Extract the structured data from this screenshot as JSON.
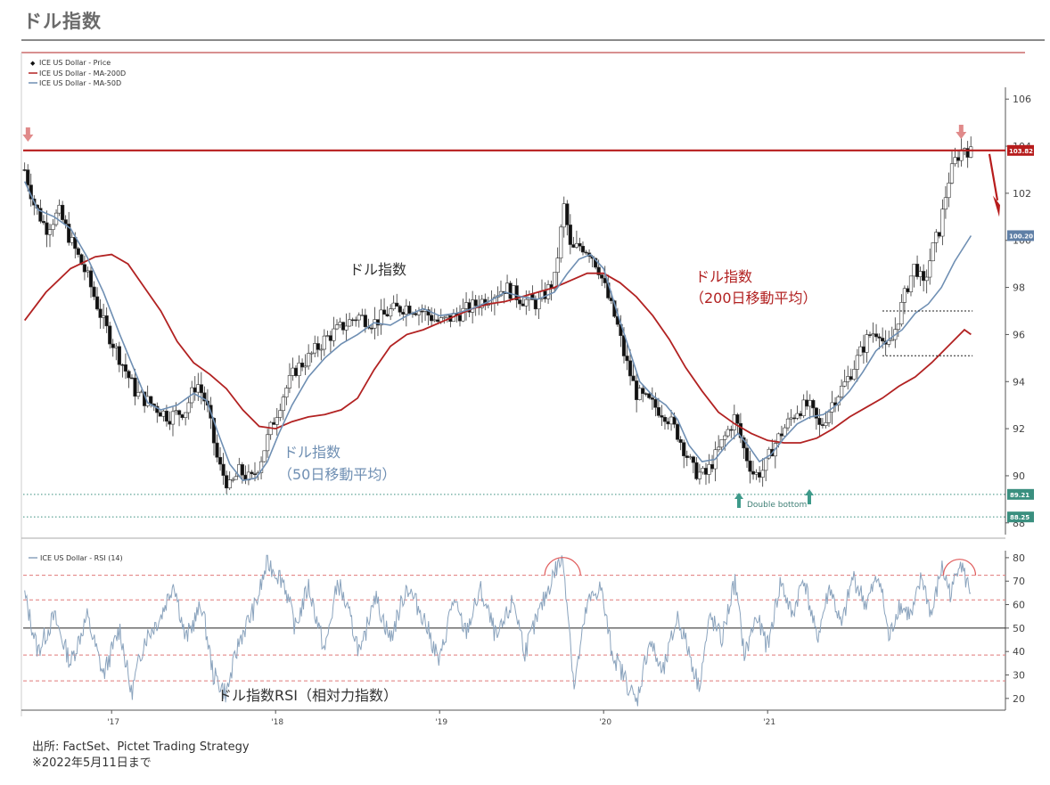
{
  "page": {
    "title": "ドル指数",
    "source_lines": [
      "出所: FactSet、Pictet Trading Strategy",
      "※2022年5月11日まで"
    ]
  },
  "colors": {
    "price": "#111111",
    "ma200": "#b22222",
    "ma50": "#6f8fb3",
    "rsi": "#8aa3bd",
    "resistance": "#b71c1c",
    "support": "#3a8f7f",
    "down_arrow": "#e08a8a",
    "up_arrow": "#3e9a8a",
    "rsi_band": "#e07a7a"
  },
  "chart_data": [
    {
      "type": "candlestick",
      "legend": {
        "price": "ICE US Dollar - Price",
        "ma200": "ICE US Dollar - MA-200D",
        "ma50": "ICE US Dollar - MA-50D"
      },
      "x_ticks": [
        "'17",
        "'18",
        "'19",
        "'20",
        "'21"
      ],
      "x_tick_years": [
        2017,
        2018,
        2019,
        2020,
        2021
      ],
      "x_range": [
        2016.45,
        2022.45
      ],
      "ylim": [
        87.5,
        106.5
      ],
      "y_ticks": [
        88,
        90,
        92,
        94,
        96,
        98,
        100,
        102,
        104,
        106
      ],
      "price_path": [
        [
          2016.47,
          103.0
        ],
        [
          2016.53,
          101.5
        ],
        [
          2016.6,
          100.5
        ],
        [
          2016.68,
          101.2
        ],
        [
          2016.75,
          100.0
        ],
        [
          2016.85,
          98.5
        ],
        [
          2016.95,
          96.5
        ],
        [
          2017.05,
          95.0
        ],
        [
          2017.15,
          93.5
        ],
        [
          2017.25,
          93.0
        ],
        [
          2017.35,
          92.5
        ],
        [
          2017.45,
          92.8
        ],
        [
          2017.52,
          94.0
        ],
        [
          2017.58,
          93.0
        ],
        [
          2017.65,
          90.5
        ],
        [
          2017.72,
          89.5
        ],
        [
          2017.78,
          90.2
        ],
        [
          2017.85,
          89.8
        ],
        [
          2017.9,
          90.5
        ],
        [
          2017.97,
          92.0
        ],
        [
          2018.05,
          93.5
        ],
        [
          2018.12,
          94.5
        ],
        [
          2018.2,
          95.0
        ],
        [
          2018.3,
          95.8
        ],
        [
          2018.4,
          96.3
        ],
        [
          2018.5,
          96.8
        ],
        [
          2018.6,
          96.5
        ],
        [
          2018.7,
          97.0
        ],
        [
          2018.8,
          97.2
        ],
        [
          2018.9,
          97.0
        ],
        [
          2019.0,
          96.5
        ],
        [
          2019.1,
          96.8
        ],
        [
          2019.2,
          97.2
        ],
        [
          2019.3,
          97.6
        ],
        [
          2019.4,
          98.0
        ],
        [
          2019.5,
          97.5
        ],
        [
          2019.6,
          97.3
        ],
        [
          2019.7,
          98.3
        ],
        [
          2019.76,
          101.5
        ],
        [
          2019.8,
          99.5
        ],
        [
          2019.86,
          99.8
        ],
        [
          2019.92,
          99.5
        ],
        [
          2019.97,
          98.8
        ],
        [
          2020.03,
          97.5
        ],
        [
          2020.08,
          96.5
        ],
        [
          2020.13,
          95.0
        ],
        [
          2020.2,
          93.5
        ],
        [
          2020.3,
          93.0
        ],
        [
          2020.38,
          92.6
        ],
        [
          2020.45,
          91.8
        ],
        [
          2020.5,
          91.0
        ],
        [
          2020.55,
          90.2
        ],
        [
          2020.62,
          90.0
        ],
        [
          2020.68,
          90.8
        ],
        [
          2020.75,
          91.8
        ],
        [
          2020.8,
          92.5
        ],
        [
          2020.86,
          91.0
        ],
        [
          2020.92,
          90.0
        ],
        [
          2020.98,
          90.3
        ],
        [
          2021.03,
          91.2
        ],
        [
          2021.1,
          92.0
        ],
        [
          2021.18,
          92.8
        ],
        [
          2021.25,
          93.0
        ],
        [
          2021.32,
          92.0
        ],
        [
          2021.4,
          93.2
        ],
        [
          2021.48,
          94.0
        ],
        [
          2021.55,
          95.0
        ],
        [
          2021.62,
          96.0
        ],
        [
          2021.68,
          96.2
        ],
        [
          2021.72,
          95.3
        ],
        [
          2021.76,
          95.8
        ],
        [
          2021.8,
          96.8
        ],
        [
          2021.85,
          98.0
        ],
        [
          2021.9,
          99.0
        ],
        [
          2021.95,
          98.0
        ],
        [
          2022.0,
          99.5
        ],
        [
          2022.05,
          100.5
        ],
        [
          2022.1,
          102.5
        ],
        [
          2022.15,
          103.5
        ],
        [
          2022.2,
          104.0
        ],
        [
          2022.24,
          103.7
        ]
      ],
      "ma200_path": [
        [
          2016.47,
          96.6
        ],
        [
          2016.6,
          97.8
        ],
        [
          2016.75,
          98.8
        ],
        [
          2016.9,
          99.3
        ],
        [
          2017.0,
          99.4
        ],
        [
          2017.1,
          99.0
        ],
        [
          2017.2,
          98.0
        ],
        [
          2017.3,
          97.0
        ],
        [
          2017.4,
          95.7
        ],
        [
          2017.5,
          94.8
        ],
        [
          2017.6,
          94.3
        ],
        [
          2017.7,
          93.7
        ],
        [
          2017.8,
          92.8
        ],
        [
          2017.9,
          92.1
        ],
        [
          2018.0,
          92.0
        ],
        [
          2018.1,
          92.3
        ],
        [
          2018.2,
          92.5
        ],
        [
          2018.3,
          92.6
        ],
        [
          2018.4,
          92.8
        ],
        [
          2018.5,
          93.3
        ],
        [
          2018.6,
          94.5
        ],
        [
          2018.7,
          95.5
        ],
        [
          2018.8,
          96.0
        ],
        [
          2018.9,
          96.2
        ],
        [
          2019.0,
          96.5
        ],
        [
          2019.1,
          96.8
        ],
        [
          2019.2,
          97.1
        ],
        [
          2019.3,
          97.3
        ],
        [
          2019.4,
          97.4
        ],
        [
          2019.5,
          97.6
        ],
        [
          2019.6,
          97.8
        ],
        [
          2019.7,
          98.0
        ],
        [
          2019.8,
          98.3
        ],
        [
          2019.9,
          98.6
        ],
        [
          2020.0,
          98.6
        ],
        [
          2020.1,
          98.2
        ],
        [
          2020.2,
          97.6
        ],
        [
          2020.3,
          96.8
        ],
        [
          2020.4,
          95.8
        ],
        [
          2020.5,
          94.6
        ],
        [
          2020.6,
          93.6
        ],
        [
          2020.7,
          92.7
        ],
        [
          2020.8,
          92.2
        ],
        [
          2020.9,
          91.8
        ],
        [
          2021.0,
          91.5
        ],
        [
          2021.1,
          91.4
        ],
        [
          2021.2,
          91.4
        ],
        [
          2021.3,
          91.6
        ],
        [
          2021.4,
          92.0
        ],
        [
          2021.5,
          92.5
        ],
        [
          2021.6,
          92.9
        ],
        [
          2021.7,
          93.3
        ],
        [
          2021.8,
          93.8
        ],
        [
          2021.9,
          94.2
        ],
        [
          2022.0,
          94.8
        ],
        [
          2022.1,
          95.5
        ],
        [
          2022.2,
          96.2
        ],
        [
          2022.24,
          96.0
        ]
      ],
      "ma50_path": [
        [
          2016.47,
          102.5
        ],
        [
          2016.55,
          101.3
        ],
        [
          2016.65,
          101.0
        ],
        [
          2016.75,
          100.5
        ],
        [
          2016.85,
          99.3
        ],
        [
          2016.95,
          97.8
        ],
        [
          2017.05,
          96.0
        ],
        [
          2017.15,
          94.3
        ],
        [
          2017.22,
          93.1
        ],
        [
          2017.3,
          92.8
        ],
        [
          2017.4,
          93.0
        ],
        [
          2017.5,
          93.5
        ],
        [
          2017.58,
          93.2
        ],
        [
          2017.65,
          91.8
        ],
        [
          2017.72,
          90.5
        ],
        [
          2017.8,
          89.8
        ],
        [
          2017.88,
          89.9
        ],
        [
          2017.95,
          90.6
        ],
        [
          2018.02,
          91.8
        ],
        [
          2018.1,
          93.0
        ],
        [
          2018.2,
          94.2
        ],
        [
          2018.3,
          95.0
        ],
        [
          2018.4,
          95.6
        ],
        [
          2018.5,
          96.0
        ],
        [
          2018.6,
          96.5
        ],
        [
          2018.7,
          96.4
        ],
        [
          2018.8,
          96.8
        ],
        [
          2018.9,
          97.1
        ],
        [
          2019.0,
          96.8
        ],
        [
          2019.1,
          96.9
        ],
        [
          2019.2,
          97.1
        ],
        [
          2019.3,
          97.4
        ],
        [
          2019.4,
          97.8
        ],
        [
          2019.5,
          97.6
        ],
        [
          2019.6,
          97.5
        ],
        [
          2019.7,
          97.8
        ],
        [
          2019.78,
          98.6
        ],
        [
          2019.85,
          99.2
        ],
        [
          2019.92,
          99.4
        ],
        [
          2020.0,
          98.8
        ],
        [
          2020.08,
          97.0
        ],
        [
          2020.15,
          95.5
        ],
        [
          2020.22,
          94.0
        ],
        [
          2020.3,
          93.4
        ],
        [
          2020.38,
          93.0
        ],
        [
          2020.45,
          92.4
        ],
        [
          2020.52,
          91.3
        ],
        [
          2020.6,
          90.6
        ],
        [
          2020.68,
          90.7
        ],
        [
          2020.76,
          91.4
        ],
        [
          2020.82,
          91.8
        ],
        [
          2020.88,
          91.3
        ],
        [
          2020.95,
          90.6
        ],
        [
          2021.02,
          90.9
        ],
        [
          2021.1,
          91.6
        ],
        [
          2021.18,
          92.2
        ],
        [
          2021.26,
          92.5
        ],
        [
          2021.34,
          92.6
        ],
        [
          2021.42,
          93.0
        ],
        [
          2021.5,
          93.6
        ],
        [
          2021.58,
          94.4
        ],
        [
          2021.66,
          95.3
        ],
        [
          2021.74,
          95.8
        ],
        [
          2021.82,
          96.2
        ],
        [
          2021.9,
          96.9
        ],
        [
          2021.98,
          97.3
        ],
        [
          2022.06,
          98.0
        ],
        [
          2022.14,
          99.1
        ],
        [
          2022.24,
          100.2
        ]
      ],
      "level_tags": {
        "resistance": "103.82",
        "ma50_last": "100.20",
        "support_1": "89.21",
        "support_2": "88.25"
      },
      "levels": {
        "resistance": 103.82,
        "support_1": 89.21,
        "support_2": 88.25,
        "range_top": 97.0,
        "range_bottom": 95.1
      },
      "annotations": {
        "price_label": "ドル指数",
        "ma200_label_1": "ドル指数",
        "ma200_label_2": "（200日移動平均）",
        "ma50_label_1": "ドル指数",
        "ma50_label_2": "（50日移動平均）",
        "double_bottom": "Double bottom"
      }
    },
    {
      "type": "line",
      "legend": "ICE US Dollar - RSI (14)",
      "ylim": [
        15,
        83
      ],
      "y_ticks": [
        20,
        30,
        40,
        50,
        60,
        70,
        80
      ],
      "bands": [
        72.5,
        62,
        50,
        38.5,
        27.5
      ],
      "rsi_anchors": [
        [
          2016.47,
          64
        ],
        [
          2016.55,
          40
        ],
        [
          2016.65,
          55
        ],
        [
          2016.75,
          35
        ],
        [
          2016.85,
          55
        ],
        [
          2016.95,
          30
        ],
        [
          2017.05,
          50
        ],
        [
          2017.12,
          22
        ],
        [
          2017.2,
          45
        ],
        [
          2017.3,
          55
        ],
        [
          2017.38,
          70
        ],
        [
          2017.45,
          45
        ],
        [
          2017.55,
          60
        ],
        [
          2017.62,
          30
        ],
        [
          2017.7,
          22
        ],
        [
          2017.78,
          45
        ],
        [
          2017.88,
          60
        ],
        [
          2017.95,
          78
        ],
        [
          2018.05,
          70
        ],
        [
          2018.12,
          50
        ],
        [
          2018.2,
          68
        ],
        [
          2018.3,
          40
        ],
        [
          2018.38,
          70
        ],
        [
          2018.45,
          55
        ],
        [
          2018.52,
          38
        ],
        [
          2018.6,
          65
        ],
        [
          2018.7,
          45
        ],
        [
          2018.8,
          68
        ],
        [
          2018.9,
          55
        ],
        [
          2019.0,
          35
        ],
        [
          2019.08,
          62
        ],
        [
          2019.16,
          48
        ],
        [
          2019.25,
          66
        ],
        [
          2019.35,
          45
        ],
        [
          2019.45,
          62
        ],
        [
          2019.52,
          40
        ],
        [
          2019.6,
          55
        ],
        [
          2019.7,
          74
        ],
        [
          2019.75,
          80
        ],
        [
          2019.78,
          60
        ],
        [
          2019.82,
          25
        ],
        [
          2019.9,
          60
        ],
        [
          2019.98,
          68
        ],
        [
          2020.05,
          40
        ],
        [
          2020.12,
          30
        ],
        [
          2020.2,
          18
        ],
        [
          2020.28,
          45
        ],
        [
          2020.36,
          30
        ],
        [
          2020.45,
          55
        ],
        [
          2020.52,
          40
        ],
        [
          2020.58,
          25
        ],
        [
          2020.65,
          55
        ],
        [
          2020.72,
          45
        ],
        [
          2020.8,
          70
        ],
        [
          2020.86,
          38
        ],
        [
          2020.93,
          55
        ],
        [
          2021.0,
          42
        ],
        [
          2021.08,
          70
        ],
        [
          2021.15,
          55
        ],
        [
          2021.22,
          72
        ],
        [
          2021.3,
          45
        ],
        [
          2021.38,
          68
        ],
        [
          2021.45,
          50
        ],
        [
          2021.52,
          72
        ],
        [
          2021.6,
          60
        ],
        [
          2021.68,
          73
        ],
        [
          2021.74,
          45
        ],
        [
          2021.8,
          60
        ],
        [
          2021.88,
          55
        ],
        [
          2021.94,
          72
        ],
        [
          2022.0,
          55
        ],
        [
          2022.06,
          76
        ],
        [
          2022.12,
          64
        ],
        [
          2022.17,
          80
        ],
        [
          2022.21,
          70
        ],
        [
          2022.24,
          66
        ]
      ],
      "annotation": "ドル指数RSI（相対力指数）"
    }
  ]
}
